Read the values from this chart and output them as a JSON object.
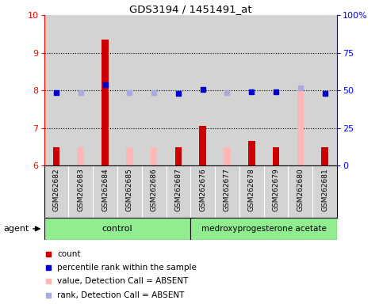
{
  "title": "GDS3194 / 1451491_at",
  "samples": [
    "GSM262682",
    "GSM262683",
    "GSM262684",
    "GSM262685",
    "GSM262686",
    "GSM262687",
    "GSM262676",
    "GSM262677",
    "GSM262678",
    "GSM262679",
    "GSM262680",
    "GSM262681"
  ],
  "count_values": [
    6.5,
    null,
    9.35,
    null,
    null,
    6.48,
    7.05,
    null,
    6.65,
    6.5,
    null,
    6.5
  ],
  "count_absent_values": [
    null,
    6.5,
    null,
    6.48,
    6.5,
    null,
    null,
    6.48,
    null,
    null,
    8.05,
    null
  ],
  "rank_values": [
    7.95,
    null,
    8.15,
    null,
    null,
    7.93,
    8.03,
    null,
    7.97,
    7.97,
    null,
    7.93
  ],
  "rank_absent_values": [
    null,
    7.95,
    null,
    7.95,
    7.95,
    null,
    null,
    7.95,
    null,
    null,
    8.07,
    null
  ],
  "ylim_left": [
    6,
    10
  ],
  "ylim_right": [
    0,
    100
  ],
  "yticks_left": [
    6,
    7,
    8,
    9,
    10
  ],
  "yticks_right": [
    0,
    25,
    50,
    75,
    100
  ],
  "ytick_labels_right": [
    "0",
    "25",
    "50",
    "75",
    "100%"
  ],
  "count_color": "#CC0000",
  "count_absent_color": "#FFB6B6",
  "rank_color": "#0000CC",
  "rank_absent_color": "#AAAADD",
  "bar_width": 0.28,
  "absent_bar_width": 0.28,
  "background_sample": "#D3D3D3",
  "background_plot": "#FFFFFF",
  "group1_label": "control",
  "group1_range": [
    0,
    5
  ],
  "group2_label": "medroxyprogesterone acetate",
  "group2_range": [
    6,
    11
  ],
  "group_color": "#90EE90",
  "legend_items": [
    "count",
    "percentile rank within the sample",
    "value, Detection Call = ABSENT",
    "rank, Detection Call = ABSENT"
  ]
}
